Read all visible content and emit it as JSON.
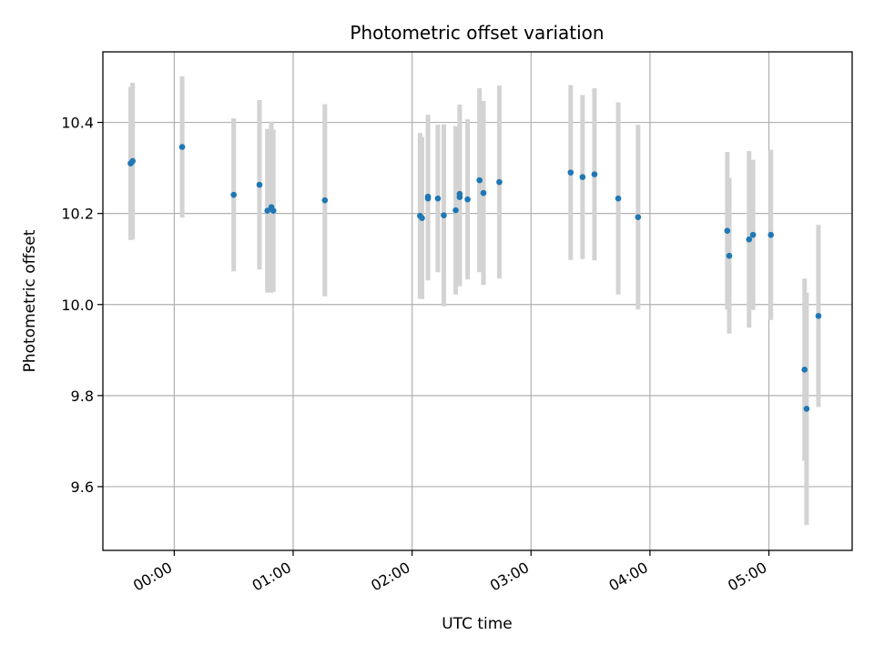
{
  "chart_data": {
    "type": "scatter",
    "title": "Photometric offset variation",
    "xlabel": "UTC time",
    "ylabel": "Photometric offset",
    "x_ticks": [
      "00:00",
      "01:00",
      "02:00",
      "03:00",
      "04:00",
      "05:00"
    ],
    "y_ticks": [
      "9.6",
      "9.8",
      "10.0",
      "10.2",
      "10.4"
    ],
    "xlim": [
      "23:24",
      "05:42"
    ],
    "ylim": [
      9.46,
      10.555
    ],
    "grid": true,
    "colors": {
      "point": "#1f77b4",
      "errorbar": "#d3d3d3",
      "grid": "#b0b0b0"
    },
    "points": [
      {
        "x": "23:38",
        "y": 10.31,
        "yerr": 0.168
      },
      {
        "x": "23:39",
        "y": 10.315,
        "yerr": 0.172
      },
      {
        "x": "00:04",
        "y": 10.346,
        "yerr": 0.155
      },
      {
        "x": "00:30",
        "y": 10.241,
        "yerr": 0.168
      },
      {
        "x": "00:43",
        "y": 10.263,
        "yerr": 0.186
      },
      {
        "x": "00:47",
        "y": 10.206,
        "yerr": 0.18
      },
      {
        "x": "00:49",
        "y": 10.214,
        "yerr": 0.188
      },
      {
        "x": "00:50",
        "y": 10.206,
        "yerr": 0.178
      },
      {
        "x": "01:16",
        "y": 10.229,
        "yerr": 0.211
      },
      {
        "x": "02:04",
        "y": 10.195,
        "yerr": 0.182
      },
      {
        "x": "02:05",
        "y": 10.19,
        "yerr": 0.178
      },
      {
        "x": "02:08",
        "y": 10.233,
        "yerr": 0.18
      },
      {
        "x": "02:08",
        "y": 10.237,
        "yerr": 0.18
      },
      {
        "x": "02:13",
        "y": 10.233,
        "yerr": 0.162
      },
      {
        "x": "02:16",
        "y": 10.196,
        "yerr": 0.2
      },
      {
        "x": "02:22",
        "y": 10.207,
        "yerr": 0.185
      },
      {
        "x": "02:24",
        "y": 10.236,
        "yerr": 0.196
      },
      {
        "x": "02:24",
        "y": 10.243,
        "yerr": 0.196
      },
      {
        "x": "02:28",
        "y": 10.231,
        "yerr": 0.176
      },
      {
        "x": "02:34",
        "y": 10.273,
        "yerr": 0.202
      },
      {
        "x": "02:36",
        "y": 10.245,
        "yerr": 0.202
      },
      {
        "x": "02:44",
        "y": 10.269,
        "yerr": 0.212
      },
      {
        "x": "03:20",
        "y": 10.29,
        "yerr": 0.192
      },
      {
        "x": "03:26",
        "y": 10.28,
        "yerr": 0.18
      },
      {
        "x": "03:32",
        "y": 10.286,
        "yerr": 0.189
      },
      {
        "x": "03:44",
        "y": 10.233,
        "yerr": 0.211
      },
      {
        "x": "03:54",
        "y": 10.192,
        "yerr": 0.203
      },
      {
        "x": "04:39",
        "y": 10.162,
        "yerr": 0.173
      },
      {
        "x": "04:40",
        "y": 10.107,
        "yerr": 0.171
      },
      {
        "x": "04:50",
        "y": 10.143,
        "yerr": 0.194
      },
      {
        "x": "04:52",
        "y": 10.153,
        "yerr": 0.165
      },
      {
        "x": "05:01",
        "y": 10.153,
        "yerr": 0.187
      },
      {
        "x": "05:18",
        "y": 9.857,
        "yerr": 0.2
      },
      {
        "x": "05:19",
        "y": 9.771,
        "yerr": 0.255
      },
      {
        "x": "05:25",
        "y": 9.975,
        "yerr": 0.2
      }
    ]
  }
}
